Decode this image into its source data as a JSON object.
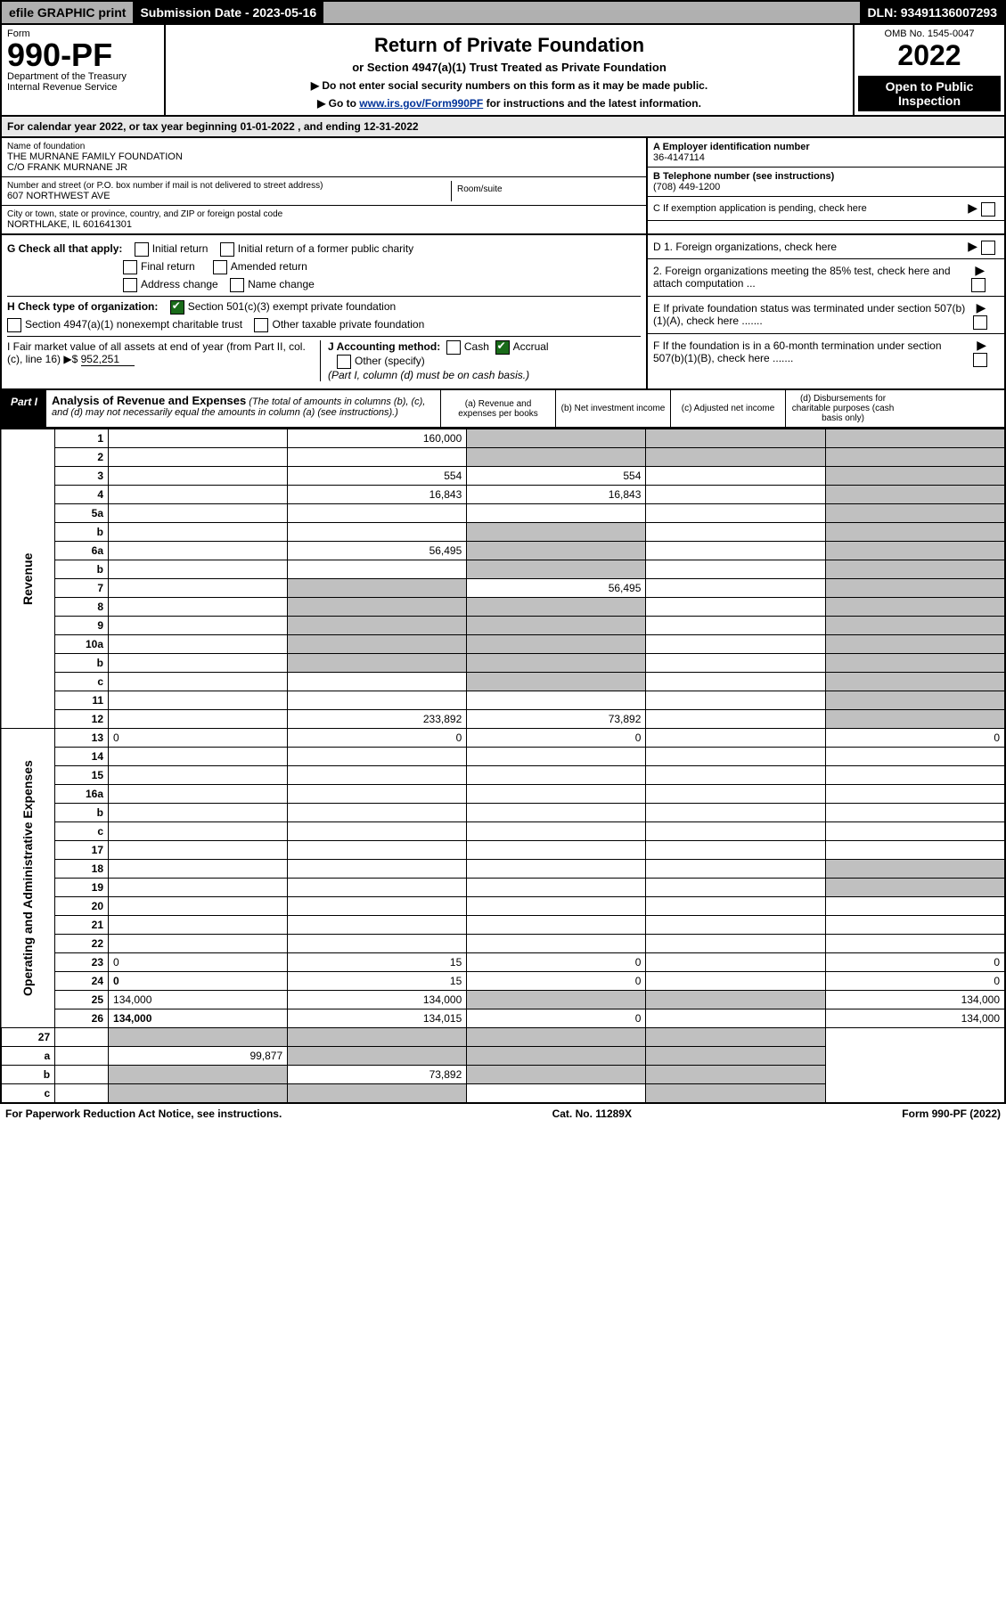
{
  "topbar": {
    "efile": "efile GRAPHIC print",
    "subdate": "Submission Date - 2023-05-16",
    "dln": "DLN: 93491136007293"
  },
  "header": {
    "form_label": "Form",
    "form_num": "990-PF",
    "dept": "Department of the Treasury",
    "irs": "Internal Revenue Service",
    "title": "Return of Private Foundation",
    "subtitle": "or Section 4947(a)(1) Trust Treated as Private Foundation",
    "note1": "▶ Do not enter social security numbers on this form as it may be made public.",
    "note2_prefix": "▶ Go to ",
    "note2_link": "www.irs.gov/Form990PF",
    "note2_suffix": " for instructions and the latest information.",
    "omb": "OMB No. 1545-0047",
    "year": "2022",
    "open": "Open to Public Inspection"
  },
  "subheader": "For calendar year 2022, or tax year beginning 01-01-2022                        , and ending 12-31-2022",
  "id": {
    "name_label": "Name of foundation",
    "name": "THE MURNANE FAMILY FOUNDATION",
    "care_of": "C/O FRANK MURNANE JR",
    "addr_label": "Number and street (or P.O. box number if mail is not delivered to street address)",
    "addr": "607 NORTHWEST AVE",
    "room_label": "Room/suite",
    "city_label": "City or town, state or province, country, and ZIP or foreign postal code",
    "city": "NORTHLAKE, IL  601641301",
    "a_label": "A Employer identification number",
    "ein": "36-4147114",
    "b_label": "B Telephone number (see instructions)",
    "phone": "(708) 449-1200",
    "c_label": "C If exemption application is pending, check here"
  },
  "checks": {
    "g_label": "G Check all that apply:",
    "g_opts": [
      "Initial return",
      "Initial return of a former public charity",
      "Final return",
      "Amended return",
      "Address change",
      "Name change"
    ],
    "h_label": "H Check type of organization:",
    "h1": "Section 501(c)(3) exempt private foundation",
    "h2": "Section 4947(a)(1) nonexempt charitable trust",
    "h3": "Other taxable private foundation",
    "i_label": "I Fair market value of all assets at end of year (from Part II, col. (c), line 16) ▶$",
    "i_val": "952,251",
    "j_label": "J Accounting method:",
    "j_cash": "Cash",
    "j_accrual": "Accrual",
    "j_other": "Other (specify)",
    "j_note": "(Part I, column (d) must be on cash basis.)",
    "d_label": "D 1. Foreign organizations, check here",
    "d2": "2. Foreign organizations meeting the 85% test, check here and attach computation ...",
    "e_label": "E  If private foundation status was terminated under section 507(b)(1)(A), check here .......",
    "f_label": "F  If the foundation is in a 60-month termination under section 507(b)(1)(B), check here ......."
  },
  "part1": {
    "label": "Part I",
    "title": "Analysis of Revenue and Expenses",
    "title_note": "(The total of amounts in columns (b), (c), and (d) may not necessarily equal the amounts in column (a) (see instructions).)",
    "cols": {
      "a": "(a)   Revenue and expenses per books",
      "b": "(b)   Net investment income",
      "c": "(c)   Adjusted net income",
      "d": "(d)  Disbursements for charitable purposes (cash basis only)"
    }
  },
  "side": {
    "revenue": "Revenue",
    "opex": "Operating and Administrative Expenses"
  },
  "rows": [
    {
      "n": "1",
      "d": "",
      "a": "160,000",
      "b": "",
      "c": ""
    },
    {
      "n": "2",
      "d": "",
      "a": "",
      "b": "",
      "c": ""
    },
    {
      "n": "3",
      "d": "",
      "a": "554",
      "b": "554",
      "c": ""
    },
    {
      "n": "4",
      "d": "",
      "a": "16,843",
      "b": "16,843",
      "c": ""
    },
    {
      "n": "5a",
      "d": "",
      "a": "",
      "b": "",
      "c": ""
    },
    {
      "n": "b",
      "d": "",
      "a": "",
      "b": "",
      "c": "",
      "bgrey": true
    },
    {
      "n": "6a",
      "d": "",
      "a": "56,495",
      "b": "",
      "c": ""
    },
    {
      "n": "b",
      "d": "",
      "a": "",
      "b": "",
      "c": "",
      "bgrey": true
    },
    {
      "n": "7",
      "d": "",
      "a": "",
      "b": "56,495",
      "c": "",
      "agrey": true
    },
    {
      "n": "8",
      "d": "",
      "a": "",
      "b": "",
      "c": "",
      "agrey": true,
      "bgrey": true
    },
    {
      "n": "9",
      "d": "",
      "a": "",
      "b": "",
      "c": "",
      "agrey": true,
      "bgrey": true
    },
    {
      "n": "10a",
      "d": "",
      "a": "",
      "b": "",
      "c": "",
      "bgrey": true,
      "agrey": true
    },
    {
      "n": "b",
      "d": "",
      "a": "",
      "b": "",
      "c": "",
      "bgrey": true,
      "agrey": true
    },
    {
      "n": "c",
      "d": "",
      "a": "",
      "b": "",
      "c": "",
      "bgrey": true
    },
    {
      "n": "11",
      "d": "",
      "a": "",
      "b": "",
      "c": ""
    },
    {
      "n": "12",
      "d": "",
      "a": "233,892",
      "b": "73,892",
      "c": "",
      "bold": true
    }
  ],
  "rows2": [
    {
      "n": "13",
      "d": "0",
      "a": "0",
      "b": "0",
      "c": ""
    },
    {
      "n": "14",
      "d": "",
      "a": "",
      "b": "",
      "c": ""
    },
    {
      "n": "15",
      "d": "",
      "a": "",
      "b": "",
      "c": ""
    },
    {
      "n": "16a",
      "d": "",
      "a": "",
      "b": "",
      "c": ""
    },
    {
      "n": "b",
      "d": "",
      "a": "",
      "b": "",
      "c": ""
    },
    {
      "n": "c",
      "d": "",
      "a": "",
      "b": "",
      "c": ""
    },
    {
      "n": "17",
      "d": "",
      "a": "",
      "b": "",
      "c": ""
    },
    {
      "n": "18",
      "d": "",
      "a": "",
      "b": "",
      "c": "",
      "dgrey": true
    },
    {
      "n": "19",
      "d": "",
      "a": "",
      "b": "",
      "c": "",
      "dgrey": true
    },
    {
      "n": "20",
      "d": "",
      "a": "",
      "b": "",
      "c": ""
    },
    {
      "n": "21",
      "d": "",
      "a": "",
      "b": "",
      "c": ""
    },
    {
      "n": "22",
      "d": "",
      "a": "",
      "b": "",
      "c": ""
    },
    {
      "n": "23",
      "d": "0",
      "a": "15",
      "b": "0",
      "c": ""
    },
    {
      "n": "24",
      "d": "0",
      "a": "15",
      "b": "0",
      "c": "",
      "bold": true
    },
    {
      "n": "25",
      "d": "134,000",
      "a": "134,000",
      "b": "",
      "c": "",
      "bgrey": true,
      "cgrey": true
    },
    {
      "n": "26",
      "d": "134,000",
      "a": "134,015",
      "b": "0",
      "c": "",
      "bold": true
    }
  ],
  "rows3": [
    {
      "n": "27",
      "d": "",
      "a": "",
      "b": "",
      "c": "",
      "agrey": true,
      "bgrey": true,
      "cgrey": true,
      "dgrey": true
    },
    {
      "n": "a",
      "d": "",
      "a": "99,877",
      "b": "",
      "c": "",
      "bold": true,
      "bgrey": true,
      "cgrey": true,
      "dgrey": true
    },
    {
      "n": "b",
      "d": "",
      "a": "",
      "b": "73,892",
      "c": "",
      "bold": true,
      "agrey": true,
      "cgrey": true,
      "dgrey": true
    },
    {
      "n": "c",
      "d": "",
      "a": "",
      "b": "",
      "c": "",
      "bold": true,
      "agrey": true,
      "bgrey": true,
      "dgrey": true
    }
  ],
  "footer": {
    "left": "For Paperwork Reduction Act Notice, see instructions.",
    "center": "Cat. No. 11289X",
    "right": "Form 990-PF (2022)"
  }
}
